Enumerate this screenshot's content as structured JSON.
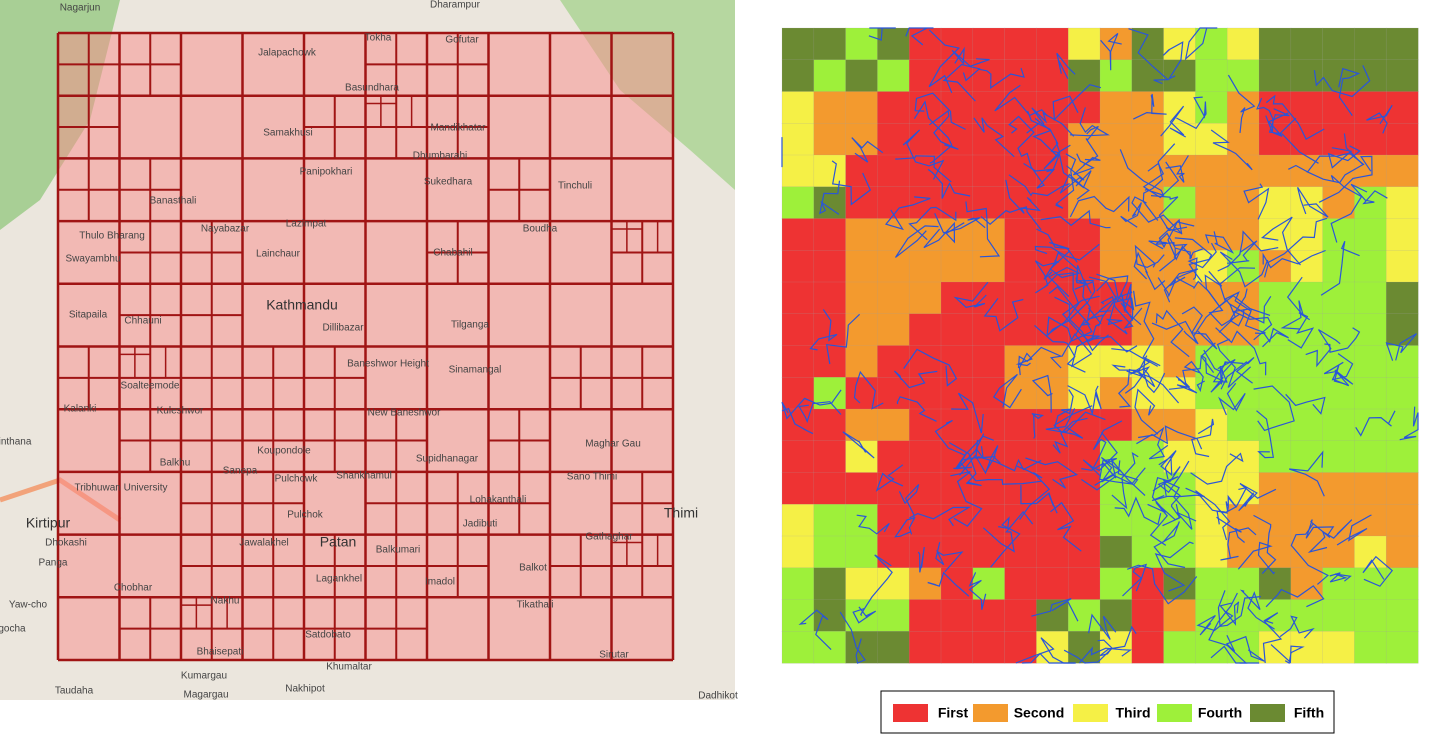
{
  "map": {
    "labels": [
      "Nagarjun",
      "Dharampur",
      "Jalapachowk",
      "Tokha",
      "Gofutar",
      "Basundhara",
      "Samakhusi",
      "Mandikhatar",
      "Dhumbarahi",
      "Panipokhari",
      "Sukedhara",
      "Tinchuli",
      "Banasthali",
      "Thulo Bharang",
      "Nayabazar",
      "Lazimpat",
      "Chabahil",
      "Boudha",
      "Swayambhu",
      "Lainchaur",
      "Kathmandu",
      "Dillibazar",
      "Tilganga",
      "Sitapaila",
      "Chhauni",
      "Baneshwor Height",
      "Sinamangal",
      "Soalteemode",
      "Kalanki",
      "Kuleshwor",
      "New Baneshwor",
      "Maghar Gau",
      "inthana",
      "Koupondole",
      "Supidhanagar",
      "Balkhu",
      "Sanepa",
      "Pulchowk",
      "Shankhamul",
      "Sano Thimi",
      "Tribhuwan University",
      "Lohakanthali",
      "Pulchok",
      "Jadibuti",
      "Thimi",
      "Kirtipur",
      "Dhokashi",
      "Jawalakhel",
      "Patan",
      "Balkumari",
      "Gathaghar",
      "Panga",
      "Lagankhel",
      "Imadol",
      "Balkot",
      "Chobhar",
      "Nakhu",
      "Tikathali",
      "Yaw-cho",
      "gocha",
      "Satdobato",
      "Bhaisepati",
      "Sirutar",
      "Khumaltar",
      "Kumargau",
      "Taudaha",
      "Nakhipot",
      "Magargau",
      "Dadhikot"
    ]
  },
  "legend": {
    "items": [
      {
        "name": "First",
        "color": "#ee3333"
      },
      {
        "name": "Second",
        "color": "#f39a2e"
      },
      {
        "name": "Third",
        "color": "#f5f046"
      },
      {
        "name": "Fourth",
        "color": "#9ef03a"
      },
      {
        "name": "Fifth",
        "color": "#6b8a32"
      }
    ]
  }
}
